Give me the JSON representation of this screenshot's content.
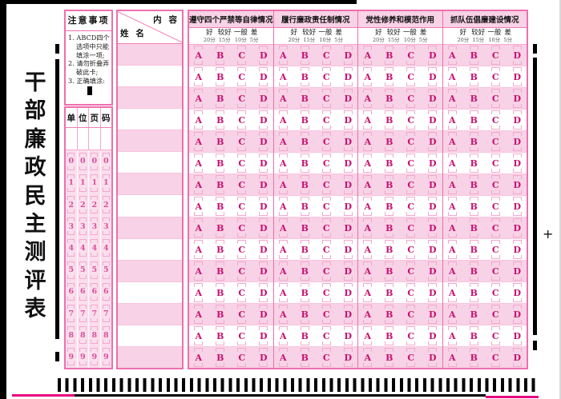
{
  "page": {
    "title": "干部廉政民主测评表",
    "plus_mark": "+"
  },
  "notes": {
    "header": "注意事项",
    "items": [
      "1. ABCD四个选项中只能填涂一项;",
      "2. 请勿折叠弄破此卡;",
      "3. 正确填涂:"
    ]
  },
  "unit_page": {
    "header_chars": [
      "单",
      "位",
      "页",
      "码"
    ],
    "digits": [
      "0",
      "1",
      "2",
      "3",
      "4",
      "5",
      "6",
      "7",
      "8",
      "9"
    ]
  },
  "table": {
    "corner_top_right": "内 容",
    "corner_bottom_left": "姓 名",
    "columns": [
      {
        "title": "遵守四个严禁等自律情况"
      },
      {
        "title": "履行廉政责任制情况"
      },
      {
        "title": "党性修养和模范作用"
      },
      {
        "title": "抓队伍倡廉建设情况"
      }
    ],
    "rating_labels": [
      "好",
      "较好",
      "一般",
      "差"
    ],
    "rating_scores": [
      "20分",
      "15分",
      "10分",
      "5分"
    ],
    "options": [
      "A",
      "B",
      "C",
      "D"
    ],
    "rows": 15
  },
  "colors": {
    "accent": "#ee6fae",
    "grid_line": "#f07eb6",
    "stripe_pink": "#f8d2e6",
    "digit_area_pink": "#fbdeed",
    "option_letter": "#c81070",
    "digit_color": "#d8509a",
    "bracket_pink": "#f3a8ce",
    "edge_magenta": "#e6007e",
    "mark_black": "#000000"
  }
}
